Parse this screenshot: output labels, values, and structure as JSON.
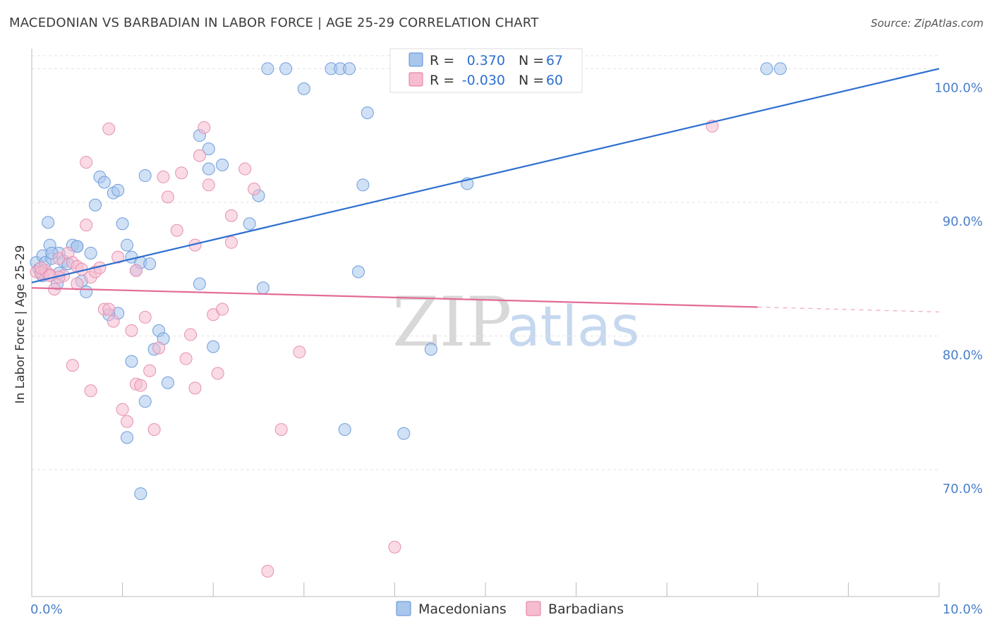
{
  "title": "MACEDONIAN VS BARBADIAN IN LABOR FORCE | AGE 25-29 CORRELATION CHART",
  "source": "Source: ZipAtlas.com",
  "watermark": {
    "zip": "ZIP",
    "atlas": "atlas"
  },
  "chart_data": {
    "type": "scatter",
    "ylabel": "In Labor Force | Age 25-29",
    "xlim": [
      0,
      10
    ],
    "ylim": [
      60.5,
      101.5
    ],
    "x_tick_labels": [
      {
        "value": 0,
        "label": "0.0%"
      },
      {
        "value": 10,
        "label": "10.0%"
      }
    ],
    "y_tick_labels": [
      {
        "value": 100,
        "label": "100.0%"
      },
      {
        "value": 90,
        "label": "90.0%"
      },
      {
        "value": 80,
        "label": "80.0%"
      },
      {
        "value": 70,
        "label": "70.0%"
      }
    ],
    "legend_stats": [
      {
        "r_label": "R =",
        "r_value": "0.370",
        "n_label": "N =",
        "n_value": "67",
        "color": "#a9c6ec",
        "stroke": "#5b8fd6"
      },
      {
        "r_label": "R =",
        "r_value": "-0.030",
        "n_label": "N =",
        "n_value": "60",
        "color": "#f6bcd0",
        "stroke": "#e07aa0"
      }
    ],
    "series": [
      {
        "name": "Macedonians",
        "fill": "#a9c6ec",
        "stroke": "#6f9ddb",
        "line_color": "#2d6fcf",
        "trend": {
          "x0": 0.0,
          "y0": 84.0,
          "x1": 10.0,
          "y1": 100.0,
          "solid_until": 10.0
        },
        "points": [
          [
            0.05,
            85.5
          ],
          [
            0.08,
            85.0
          ],
          [
            0.12,
            86.0
          ],
          [
            0.15,
            85.5
          ],
          [
            0.1,
            84.8
          ],
          [
            0.2,
            86.8
          ],
          [
            0.22,
            85.8
          ],
          [
            0.3,
            86.2
          ],
          [
            0.35,
            85.6
          ],
          [
            0.28,
            83.9
          ],
          [
            0.4,
            85.4
          ],
          [
            0.45,
            86.8
          ],
          [
            0.5,
            86.7
          ],
          [
            0.55,
            84.1
          ],
          [
            0.6,
            83.3
          ],
          [
            0.65,
            86.2
          ],
          [
            0.18,
            88.5
          ],
          [
            0.75,
            91.9
          ],
          [
            0.8,
            91.5
          ],
          [
            0.9,
            90.7
          ],
          [
            0.95,
            90.9
          ],
          [
            0.7,
            89.8
          ],
          [
            1.0,
            88.4
          ],
          [
            1.05,
            86.8
          ],
          [
            1.1,
            85.9
          ],
          [
            1.15,
            84.9
          ],
          [
            1.2,
            85.5
          ],
          [
            1.3,
            85.4
          ],
          [
            1.25,
            92.0
          ],
          [
            1.35,
            79.0
          ],
          [
            1.4,
            80.4
          ],
          [
            1.45,
            79.8
          ],
          [
            1.5,
            76.5
          ],
          [
            1.25,
            75.1
          ],
          [
            1.05,
            72.4
          ],
          [
            1.2,
            68.2
          ],
          [
            1.1,
            78.1
          ],
          [
            0.95,
            81.7
          ],
          [
            0.85,
            81.6
          ],
          [
            1.85,
            83.9
          ],
          [
            2.0,
            79.2
          ],
          [
            2.4,
            88.4
          ],
          [
            2.6,
            100.0
          ],
          [
            2.8,
            100.0
          ],
          [
            3.0,
            98.5
          ],
          [
            3.3,
            100.0
          ],
          [
            3.4,
            100.0
          ],
          [
            3.5,
            100.0
          ],
          [
            3.45,
            73.0
          ],
          [
            3.6,
            84.8
          ],
          [
            3.65,
            91.3
          ],
          [
            3.7,
            96.7
          ],
          [
            2.5,
            90.5
          ],
          [
            2.55,
            83.6
          ],
          [
            1.85,
            95.0
          ],
          [
            1.95,
            94.0
          ],
          [
            1.95,
            92.5
          ],
          [
            2.1,
            92.8
          ],
          [
            4.1,
            72.7
          ],
          [
            4.4,
            79.0
          ],
          [
            4.8,
            91.4
          ],
          [
            8.1,
            100.0
          ],
          [
            8.25,
            100.0
          ],
          [
            0.5,
            86.7
          ],
          [
            0.22,
            86.2
          ],
          [
            0.3,
            84.7
          ],
          [
            0.12,
            84.5
          ]
        ]
      },
      {
        "name": "Barbadians",
        "fill": "#f6bcd0",
        "stroke": "#e690b0",
        "line_color": "#e36b98",
        "trend": {
          "x0": 0.0,
          "y0": 83.6,
          "x1": 10.0,
          "y1": 81.8,
          "solid_until": 8.0
        },
        "points": [
          [
            0.05,
            84.8
          ],
          [
            0.1,
            84.7
          ],
          [
            0.15,
            84.9
          ],
          [
            0.2,
            84.6
          ],
          [
            0.25,
            83.5
          ],
          [
            0.3,
            85.8
          ],
          [
            0.35,
            84.5
          ],
          [
            0.4,
            86.2
          ],
          [
            0.45,
            85.5
          ],
          [
            0.5,
            85.2
          ],
          [
            0.55,
            85.0
          ],
          [
            0.6,
            88.3
          ],
          [
            0.65,
            84.4
          ],
          [
            0.7,
            84.8
          ],
          [
            0.75,
            85.1
          ],
          [
            0.8,
            82.0
          ],
          [
            0.85,
            82.0
          ],
          [
            0.9,
            81.1
          ],
          [
            0.95,
            85.9
          ],
          [
            1.0,
            74.5
          ],
          [
            1.05,
            73.6
          ],
          [
            1.1,
            80.4
          ],
          [
            1.15,
            76.4
          ],
          [
            1.2,
            76.3
          ],
          [
            1.25,
            81.4
          ],
          [
            1.3,
            77.4
          ],
          [
            1.35,
            73.0
          ],
          [
            1.4,
            79.1
          ],
          [
            1.45,
            91.9
          ],
          [
            1.5,
            90.4
          ],
          [
            1.6,
            87.9
          ],
          [
            1.65,
            92.2
          ],
          [
            1.7,
            78.3
          ],
          [
            1.75,
            80.1
          ],
          [
            1.8,
            76.1
          ],
          [
            1.85,
            93.5
          ],
          [
            1.9,
            95.6
          ],
          [
            1.95,
            91.3
          ],
          [
            2.0,
            81.6
          ],
          [
            2.05,
            77.2
          ],
          [
            2.1,
            82.0
          ],
          [
            2.2,
            89.0
          ],
          [
            2.35,
            92.5
          ],
          [
            2.45,
            91.0
          ],
          [
            2.6,
            62.4
          ],
          [
            2.75,
            73.0
          ],
          [
            2.95,
            78.8
          ],
          [
            2.2,
            87.0
          ],
          [
            0.45,
            77.8
          ],
          [
            0.65,
            75.9
          ],
          [
            0.85,
            95.5
          ],
          [
            0.6,
            93.0
          ],
          [
            0.3,
            84.4
          ],
          [
            1.15,
            84.9
          ],
          [
            4.0,
            64.2
          ],
          [
            7.5,
            95.7
          ],
          [
            0.2,
            84.5
          ],
          [
            0.1,
            85.1
          ],
          [
            0.5,
            83.9
          ],
          [
            1.8,
            86.8
          ]
        ]
      }
    ]
  }
}
